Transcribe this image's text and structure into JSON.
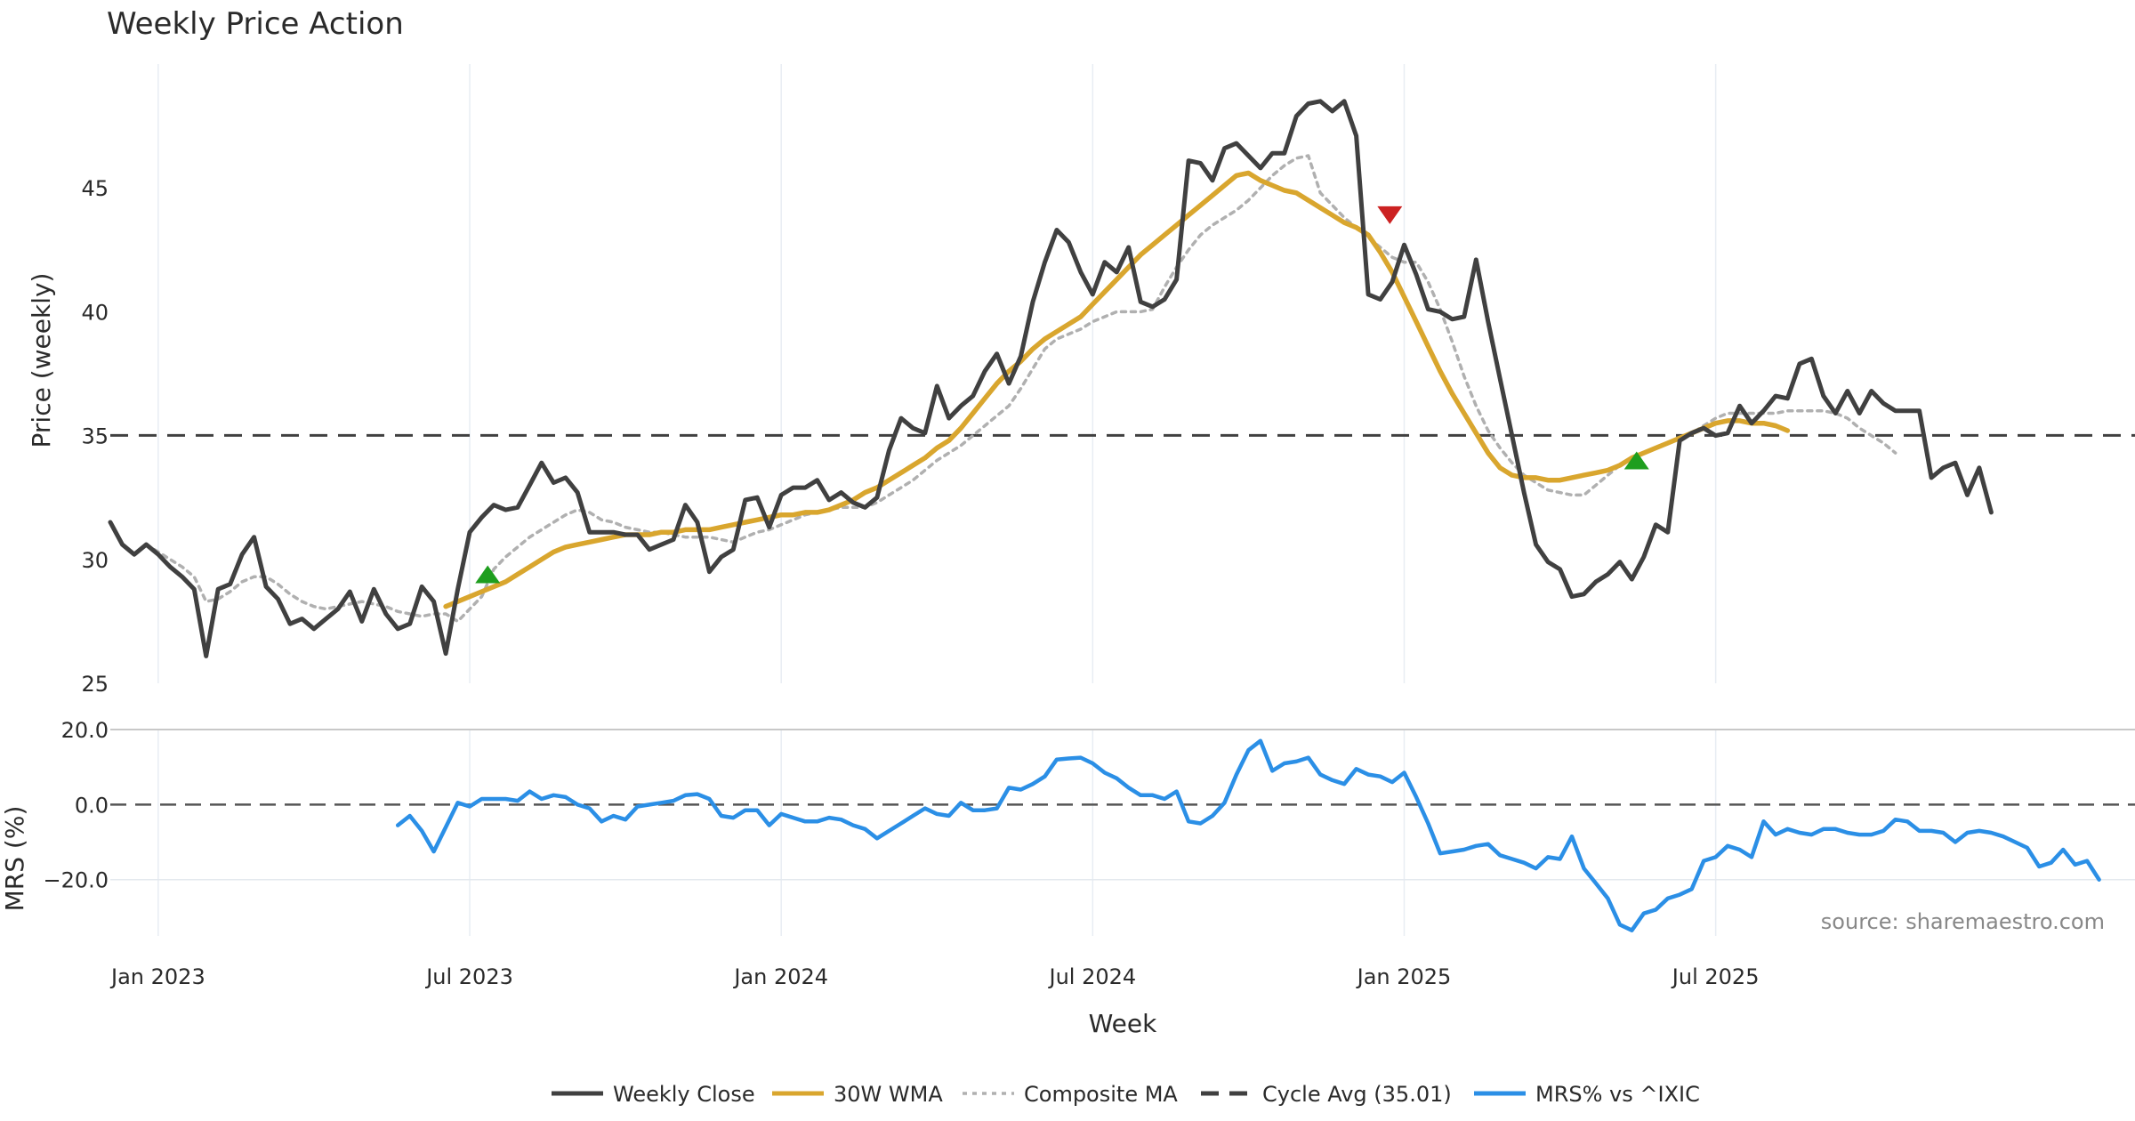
{
  "chart_data": {
    "type": "line",
    "title": "Weekly Price Action",
    "source": "source: sharemaestro.com",
    "xlabel": "Week",
    "x_ticks": [
      "Jan 2023",
      "Jul 2023",
      "Jan 2024",
      "Jul 2024",
      "Jan 2025",
      "Jul 2025"
    ],
    "x_tick_weeks": [
      4,
      30,
      56,
      82,
      108,
      134
    ],
    "price_panel": {
      "ylabel": "Price (weekly)",
      "ylim": [
        25,
        50
      ],
      "y_ticks": [
        25,
        30,
        35,
        40,
        45
      ],
      "cycle_avg": 35.01,
      "series": [
        {
          "name": "Weekly Close",
          "color": "#404040",
          "start_week": 0,
          "values": [
            31.5,
            30.6,
            30.2,
            30.6,
            30.2,
            29.7,
            29.3,
            28.8,
            26.1,
            28.8,
            29.0,
            30.2,
            30.9,
            28.9,
            28.4,
            27.4,
            27.6,
            27.2,
            27.6,
            28.0,
            28.7,
            27.5,
            28.8,
            27.8,
            27.2,
            27.4,
            28.9,
            28.3,
            26.2,
            28.8,
            31.1,
            31.7,
            32.2,
            32.0,
            32.1,
            33.0,
            33.9,
            33.1,
            33.3,
            32.7,
            31.1,
            31.1,
            31.1,
            31.0,
            31.0,
            30.4,
            30.6,
            30.8,
            32.2,
            31.5,
            29.5,
            30.1,
            30.4,
            32.4,
            32.5,
            31.3,
            32.6,
            32.9,
            32.9,
            33.2,
            32.4,
            32.7,
            32.3,
            32.1,
            32.5,
            34.4,
            35.7,
            35.3,
            35.1,
            37.0,
            35.7,
            36.2,
            36.6,
            37.6,
            38.3,
            37.1,
            38.2,
            40.4,
            42.0,
            43.3,
            42.8,
            41.6,
            40.7,
            42.0,
            41.6,
            42.6,
            40.4,
            40.2,
            40.5,
            41.3,
            46.1,
            46.0,
            45.3,
            46.6,
            46.8,
            46.3,
            45.8,
            46.4,
            46.4,
            47.9,
            48.4,
            48.5,
            48.1,
            48.5,
            47.1,
            40.7,
            40.5,
            41.2,
            42.7,
            41.5,
            40.1,
            40.0,
            39.7,
            39.8,
            42.1,
            39.6,
            37.3,
            35.0,
            32.7,
            30.6,
            29.9,
            29.6,
            28.5,
            28.6,
            29.1,
            29.4,
            29.9,
            29.2,
            30.1,
            31.4,
            31.1,
            34.8,
            35.1,
            35.3,
            35.0,
            35.1,
            36.2,
            35.5,
            36.0,
            36.6,
            36.5,
            37.9,
            38.1,
            36.6,
            35.9,
            36.8,
            35.9,
            36.8,
            36.3,
            36.0,
            36.0,
            36.0,
            33.3,
            33.7,
            33.9,
            32.6,
            33.7,
            31.9
          ]
        },
        {
          "name": "30W WMA",
          "color": "#D9A62E",
          "start_week": 28,
          "values": [
            28.1,
            28.3,
            28.5,
            28.7,
            28.9,
            29.1,
            29.4,
            29.7,
            30.0,
            30.3,
            30.5,
            30.6,
            30.7,
            30.8,
            30.9,
            31.0,
            31.0,
            31.0,
            31.1,
            31.1,
            31.2,
            31.2,
            31.2,
            31.3,
            31.4,
            31.5,
            31.6,
            31.7,
            31.8,
            31.8,
            31.9,
            31.9,
            32.0,
            32.2,
            32.4,
            32.7,
            32.9,
            33.2,
            33.5,
            33.8,
            34.1,
            34.5,
            34.8,
            35.3,
            35.9,
            36.5,
            37.1,
            37.6,
            38.0,
            38.5,
            38.9,
            39.2,
            39.5,
            39.8,
            40.3,
            40.8,
            41.3,
            41.8,
            42.3,
            42.7,
            43.1,
            43.5,
            43.9,
            44.3,
            44.7,
            45.1,
            45.5,
            45.6,
            45.3,
            45.1,
            44.9,
            44.8,
            44.5,
            44.2,
            43.9,
            43.6,
            43.4,
            43.1,
            42.4,
            41.6,
            40.6,
            39.6,
            38.6,
            37.6,
            36.7,
            35.9,
            35.1,
            34.3,
            33.7,
            33.4,
            33.3,
            33.3,
            33.2,
            33.2,
            33.3,
            33.4,
            33.5,
            33.6,
            33.8,
            34.1,
            34.3,
            34.5,
            34.7,
            34.9,
            35.1,
            35.3,
            35.5,
            35.6,
            35.6,
            35.5,
            35.5,
            35.4,
            35.2
          ]
        },
        {
          "name": "Composite MA",
          "color": "#B0B0B0",
          "start_week": 3,
          "values": [
            30.6,
            30.3,
            30.0,
            29.7,
            29.3,
            28.3,
            28.4,
            28.7,
            29.1,
            29.3,
            29.3,
            29.0,
            28.6,
            28.3,
            28.1,
            28.0,
            28.1,
            28.2,
            28.3,
            28.2,
            28.1,
            27.9,
            27.8,
            27.7,
            27.8,
            27.8,
            27.5,
            28.0,
            28.5,
            29.6,
            30.1,
            30.5,
            30.9,
            31.2,
            31.5,
            31.8,
            32.0,
            31.9,
            31.6,
            31.5,
            31.3,
            31.2,
            31.1,
            31.1,
            31.0,
            30.9,
            30.9,
            30.9,
            30.8,
            30.7,
            30.9,
            31.1,
            31.2,
            31.4,
            31.6,
            31.8,
            31.9,
            32.0,
            32.1,
            32.1,
            32.1,
            32.3,
            32.6,
            32.9,
            33.2,
            33.6,
            34.0,
            34.3,
            34.6,
            35.0,
            35.4,
            35.8,
            36.2,
            36.9,
            37.7,
            38.5,
            38.9,
            39.1,
            39.3,
            39.6,
            39.8,
            40.0,
            40.0,
            40.0,
            40.1,
            41.0,
            41.8,
            42.5,
            43.1,
            43.5,
            43.8,
            44.1,
            44.5,
            45.0,
            45.5,
            45.9,
            46.2,
            46.3,
            44.8,
            44.3,
            43.8,
            43.4,
            43.0,
            42.6,
            42.2,
            42.0,
            42.0,
            41.2,
            40.1,
            38.8,
            37.4,
            36.2,
            35.2,
            34.5,
            33.9,
            33.4,
            33.1,
            32.8,
            32.7,
            32.6,
            32.6,
            33.0,
            33.4,
            33.8,
            34.1,
            34.3,
            34.5,
            34.7,
            34.9,
            35.1,
            35.4,
            35.7,
            35.9,
            35.9,
            35.9,
            35.9,
            35.9,
            36.0,
            36.0,
            36.0,
            36.0,
            35.9,
            35.7,
            35.3,
            35.0,
            34.7,
            34.3
          ]
        }
      ],
      "signals": [
        {
          "type": "buy",
          "week": 31.5,
          "price": 29.4,
          "color": "#1E9E1E"
        },
        {
          "type": "sell",
          "week": 106.8,
          "price": 43.9,
          "color": "#CC2222"
        },
        {
          "type": "buy",
          "week": 127.4,
          "price": 34.0,
          "color": "#1E9E1E"
        }
      ]
    },
    "mrs_panel": {
      "ylabel": "MRS (%)",
      "ylim": [
        -35,
        20
      ],
      "y_ticks": [
        20,
        0,
        -20
      ],
      "y_tick_labels": [
        "20.0",
        "0.0",
        "−20.0"
      ],
      "series": [
        {
          "name": "MRS% vs ^IXIC",
          "color": "#2B8FE6",
          "start_week": 24,
          "values": [
            -5.5,
            -3.0,
            -7.0,
            -12.5,
            -6.0,
            0.5,
            -0.5,
            1.5,
            1.5,
            1.5,
            1.0,
            3.5,
            1.5,
            2.5,
            2.0,
            0.0,
            -1.0,
            -4.5,
            -3.0,
            -4.0,
            -0.5,
            0.0,
            0.5,
            1.0,
            2.5,
            2.8,
            1.5,
            -3.0,
            -3.5,
            -1.5,
            -1.5,
            -5.5,
            -2.5,
            -3.5,
            -4.5,
            -4.5,
            -3.5,
            -4.0,
            -5.5,
            -6.5,
            -9.0,
            -7.0,
            -5.0,
            -3.0,
            -1.0,
            -2.5,
            -3.0,
            0.5,
            -1.5,
            -1.5,
            -1.0,
            4.5,
            4.0,
            5.5,
            7.5,
            12.0,
            12.3,
            12.5,
            11.0,
            8.5,
            7.0,
            4.5,
            2.5,
            2.5,
            1.5,
            3.5,
            -4.5,
            -5.0,
            -3.0,
            0.5,
            8.0,
            14.5,
            17.0,
            9.0,
            11.0,
            11.5,
            12.5,
            8.0,
            6.5,
            5.5,
            9.5,
            8.0,
            7.5,
            6.0,
            8.5,
            2.0,
            -5.0,
            -13.0,
            -12.5,
            -12.0,
            -11.0,
            -10.5,
            -13.5,
            -14.5,
            -15.5,
            -17.0,
            -14.0,
            -14.5,
            -8.5,
            -17.0,
            -21.0,
            -25.0,
            -32.0,
            -33.5,
            -29.0,
            -28.0,
            -25.0,
            -24.0,
            -22.5,
            -15.0,
            -14.0,
            -11.0,
            -12.0,
            -14.0,
            -4.5,
            -8.0,
            -6.5,
            -7.5,
            -8.0,
            -6.5,
            -6.5,
            -7.5,
            -8.0,
            -8.0,
            -7.0,
            -4.0,
            -4.5,
            -7.0,
            -7.0,
            -7.5,
            -10.0,
            -7.5,
            -7.0,
            -7.5,
            -8.5,
            -10.0,
            -11.5,
            -16.5,
            -15.5,
            -12.0,
            -16.0,
            -15.0,
            -20.0
          ]
        }
      ]
    },
    "legend": [
      {
        "label": "Weekly Close",
        "style": "solid",
        "color": "#404040"
      },
      {
        "label": "30W WMA",
        "style": "solid",
        "color": "#D9A62E"
      },
      {
        "label": "Composite MA",
        "style": "dotted",
        "color": "#B0B0B0"
      },
      {
        "label": "Cycle Avg (35.01)",
        "style": "dashed",
        "color": "#404040"
      },
      {
        "label": "MRS% vs ^IXIC",
        "style": "solid",
        "color": "#2B8FE6"
      }
    ]
  }
}
